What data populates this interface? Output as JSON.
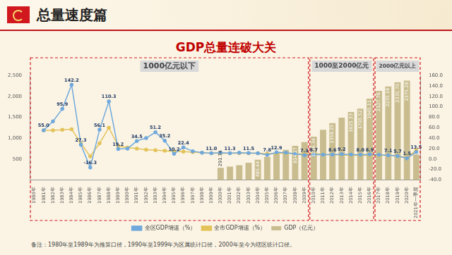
{
  "header": "总量速度篇",
  "note": "备注：1980年至1989年为推算口径，1990年至1999年为区属统计口径，2000年至今为辖区统计口径。",
  "chart_data": {
    "type": "bar",
    "title": "GDP总量连破大关",
    "categories": [
      "1980年",
      "1981年",
      "1982年",
      "1983年",
      "1984年",
      "1985年",
      "1986年",
      "1987年",
      "1988年",
      "1989年",
      "1990年",
      "1991年",
      "1992年",
      "1993年",
      "1994年",
      "1995年",
      "1996年",
      "1997年",
      "1998年",
      "1999年",
      "2000年",
      "2001年",
      "2002年",
      "2003年",
      "2004年",
      "2005年",
      "2006年",
      "2007年",
      "2008年",
      "2009年",
      "2010年",
      "2011年",
      "2012年",
      "2013年",
      "2014年",
      "2015年",
      "2016年",
      "2017年",
      "2018年",
      "2019年",
      "2020年",
      "2021年一季度"
    ],
    "series": [
      {
        "name": "GDP（亿元）",
        "type": "bar",
        "color": "#c9bd8f",
        "values": [
          null,
          null,
          null,
          null,
          null,
          null,
          null,
          null,
          null,
          null,
          null,
          null,
          null,
          null,
          null,
          null,
          null,
          null,
          null,
          null,
          291.74,
          320,
          352,
          410,
          485.44,
          550,
          625,
          720,
          814.27,
          905,
          1036.34,
          1200,
          1358.25,
          1490,
          1625.33,
          1705.52,
          1945.11,
          2127.76,
          2235.16,
          2335.7,
          2375.28,
          608
        ],
        "value_labels": [
          null,
          null,
          null,
          null,
          null,
          null,
          null,
          null,
          null,
          null,
          null,
          null,
          null,
          null,
          null,
          null,
          null,
          null,
          null,
          null,
          "291.74",
          null,
          null,
          null,
          "485.44",
          null,
          null,
          null,
          "814.27",
          null,
          "1036.34",
          null,
          "1358.25",
          null,
          "1625.33",
          "1705.52",
          "1945.11",
          "2127.76",
          "2235.16",
          "2335.70",
          "2375.28",
          null
        ]
      },
      {
        "name": "全区GDP增速（%）",
        "type": "line",
        "axis": "y2",
        "color": "#6fa8dc",
        "marker": "circle",
        "values": [
          null,
          55.0,
          72,
          95.9,
          142.2,
          27.3,
          -16.3,
          56.1,
          110.3,
          19.2,
          20,
          34.5,
          40,
          51.2,
          35.2,
          10.2,
          22.4,
          15,
          12,
          11.0,
          12,
          11.3,
          12,
          11.5,
          11,
          7.8,
          12.9,
          12,
          10,
          7.3,
          8.7,
          8.5,
          8.6,
          9.2,
          8.5,
          8.0,
          8.9,
          8.0,
          7.1,
          5.7,
          1.5,
          13.5
        ],
        "value_labels": [
          null,
          "55.0",
          null,
          "95.9",
          "142.2",
          "27.3",
          "-16.3",
          "56.1",
          "110.3",
          "19.2",
          null,
          "34.5",
          null,
          "51.2",
          "35.2",
          "10.2",
          "22.4",
          null,
          null,
          "11.0",
          null,
          "11.3",
          null,
          "11.5",
          null,
          "7.8",
          "12.9",
          null,
          null,
          "7.3",
          "8.7",
          null,
          "8.6",
          "9.2",
          null,
          "8.0",
          "8.9",
          null,
          "7.1",
          "5.7",
          "1.5",
          "13.5"
        ]
      },
      {
        "name": "全市GDP增速（%）",
        "type": "line",
        "axis": "y2",
        "color": "#e3c25a",
        "marker": "circle",
        "values": [
          null,
          55,
          55,
          56,
          57,
          30,
          5,
          30,
          60,
          25,
          22,
          20,
          18,
          17,
          16,
          14,
          14,
          13,
          12,
          11,
          11,
          11,
          11,
          11,
          11,
          10,
          11,
          11,
          10,
          9,
          10,
          9,
          8,
          8,
          7,
          7,
          7,
          7,
          7,
          6,
          2,
          17
        ]
      }
    ],
    "ylim": [
      0,
      2500
    ],
    "yticks": [
      500,
      {
        "value": 1000,
        "label": "1,000"
      },
      {
        "value": 1500,
        "label": "1,500"
      },
      {
        "value": 2000,
        "label": "2,000"
      },
      {
        "value": 2500,
        "label": "2,500"
      }
    ],
    "y2lim": [
      -40,
      160
    ],
    "y2ticks": [
      {
        "value": -40,
        "label": "-40.0"
      },
      {
        "value": -20,
        "label": "-20.0"
      },
      {
        "value": 0,
        "label": "0.0"
      },
      {
        "value": 20,
        "label": "20.0"
      },
      {
        "value": 40,
        "label": "40.0"
      },
      {
        "value": 60,
        "label": "60.0"
      },
      {
        "value": 80,
        "label": "80.0"
      },
      {
        "value": 100,
        "label": "100.0"
      },
      {
        "value": 120,
        "label": "120.0"
      },
      {
        "value": 140,
        "label": "140.0"
      },
      {
        "value": 160,
        "label": "160.0"
      }
    ],
    "grid": false,
    "legend": "bottom",
    "data_labels": true,
    "annotations": [
      {
        "text": "1000亿元以下",
        "from": "1980年",
        "to": "2009年"
      },
      {
        "text": "1000至2000亿元",
        "from": "2010年",
        "to": "2016年"
      },
      {
        "text": "2000亿元以上",
        "from": "2017年",
        "to": "2021年一季度"
      }
    ]
  }
}
